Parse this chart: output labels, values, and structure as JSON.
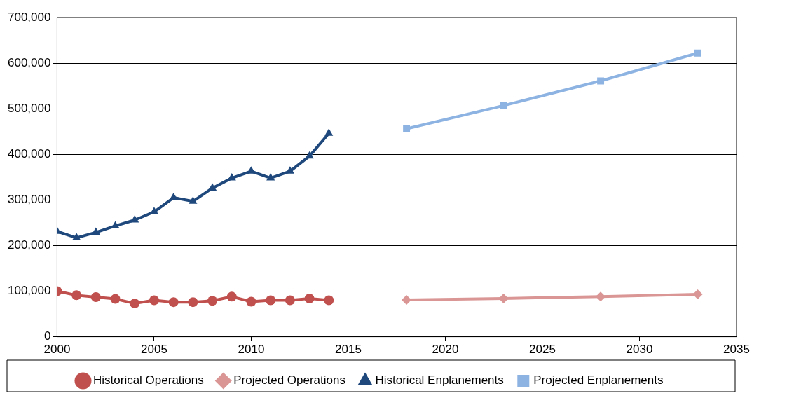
{
  "chart_data": {
    "type": "line",
    "xlim": [
      2000,
      2035
    ],
    "xticks": [
      2000,
      2005,
      2010,
      2015,
      2020,
      2025,
      2030,
      2035
    ],
    "ylim": [
      0,
      700000
    ],
    "yticks": [
      {
        "value": 0,
        "label": "0"
      },
      {
        "value": 100000,
        "label": "100,000"
      },
      {
        "value": 200000,
        "label": "200,000"
      },
      {
        "value": 300000,
        "label": "300,000"
      },
      {
        "value": 400000,
        "label": "400,000"
      },
      {
        "value": 500000,
        "label": "500,000"
      },
      {
        "value": 600000,
        "label": "600,000"
      },
      {
        "value": 700000,
        "label": "700,000"
      }
    ],
    "grid": "y",
    "legend": "bottom",
    "line_style": "solid",
    "series": [
      {
        "name": "Historical Operations",
        "color": "#c0504d",
        "marker": "circle",
        "x": [
          2000,
          2001,
          2002,
          2003,
          2004,
          2005,
          2006,
          2007,
          2008,
          2009,
          2010,
          2011,
          2012,
          2013,
          2014
        ],
        "values": [
          100000,
          91000,
          87000,
          83000,
          73000,
          80000,
          76000,
          76000,
          79000,
          88000,
          77000,
          80000,
          80000,
          84000,
          80000
        ]
      },
      {
        "name": "Projected Operations",
        "color": "#d99694",
        "marker": "diamond",
        "x": [
          2018,
          2023,
          2028,
          2033
        ],
        "values": [
          81000,
          84000,
          88000,
          93000
        ]
      },
      {
        "name": "Historical Enplanements",
        "color": "#1f497d",
        "marker": "triangle",
        "x": [
          2000,
          2001,
          2002,
          2003,
          2004,
          2005,
          2006,
          2007,
          2008,
          2009,
          2010,
          2011,
          2012,
          2013,
          2014
        ],
        "values": [
          231000,
          217000,
          229000,
          243000,
          256000,
          274000,
          305000,
          297000,
          326000,
          348000,
          363000,
          348000,
          363000,
          396000,
          446000
        ]
      },
      {
        "name": "Projected Enplanements",
        "color": "#8db3e2",
        "marker": "square",
        "x": [
          2018,
          2023,
          2028,
          2033
        ],
        "values": [
          456000,
          507000,
          561000,
          622000
        ]
      }
    ]
  }
}
